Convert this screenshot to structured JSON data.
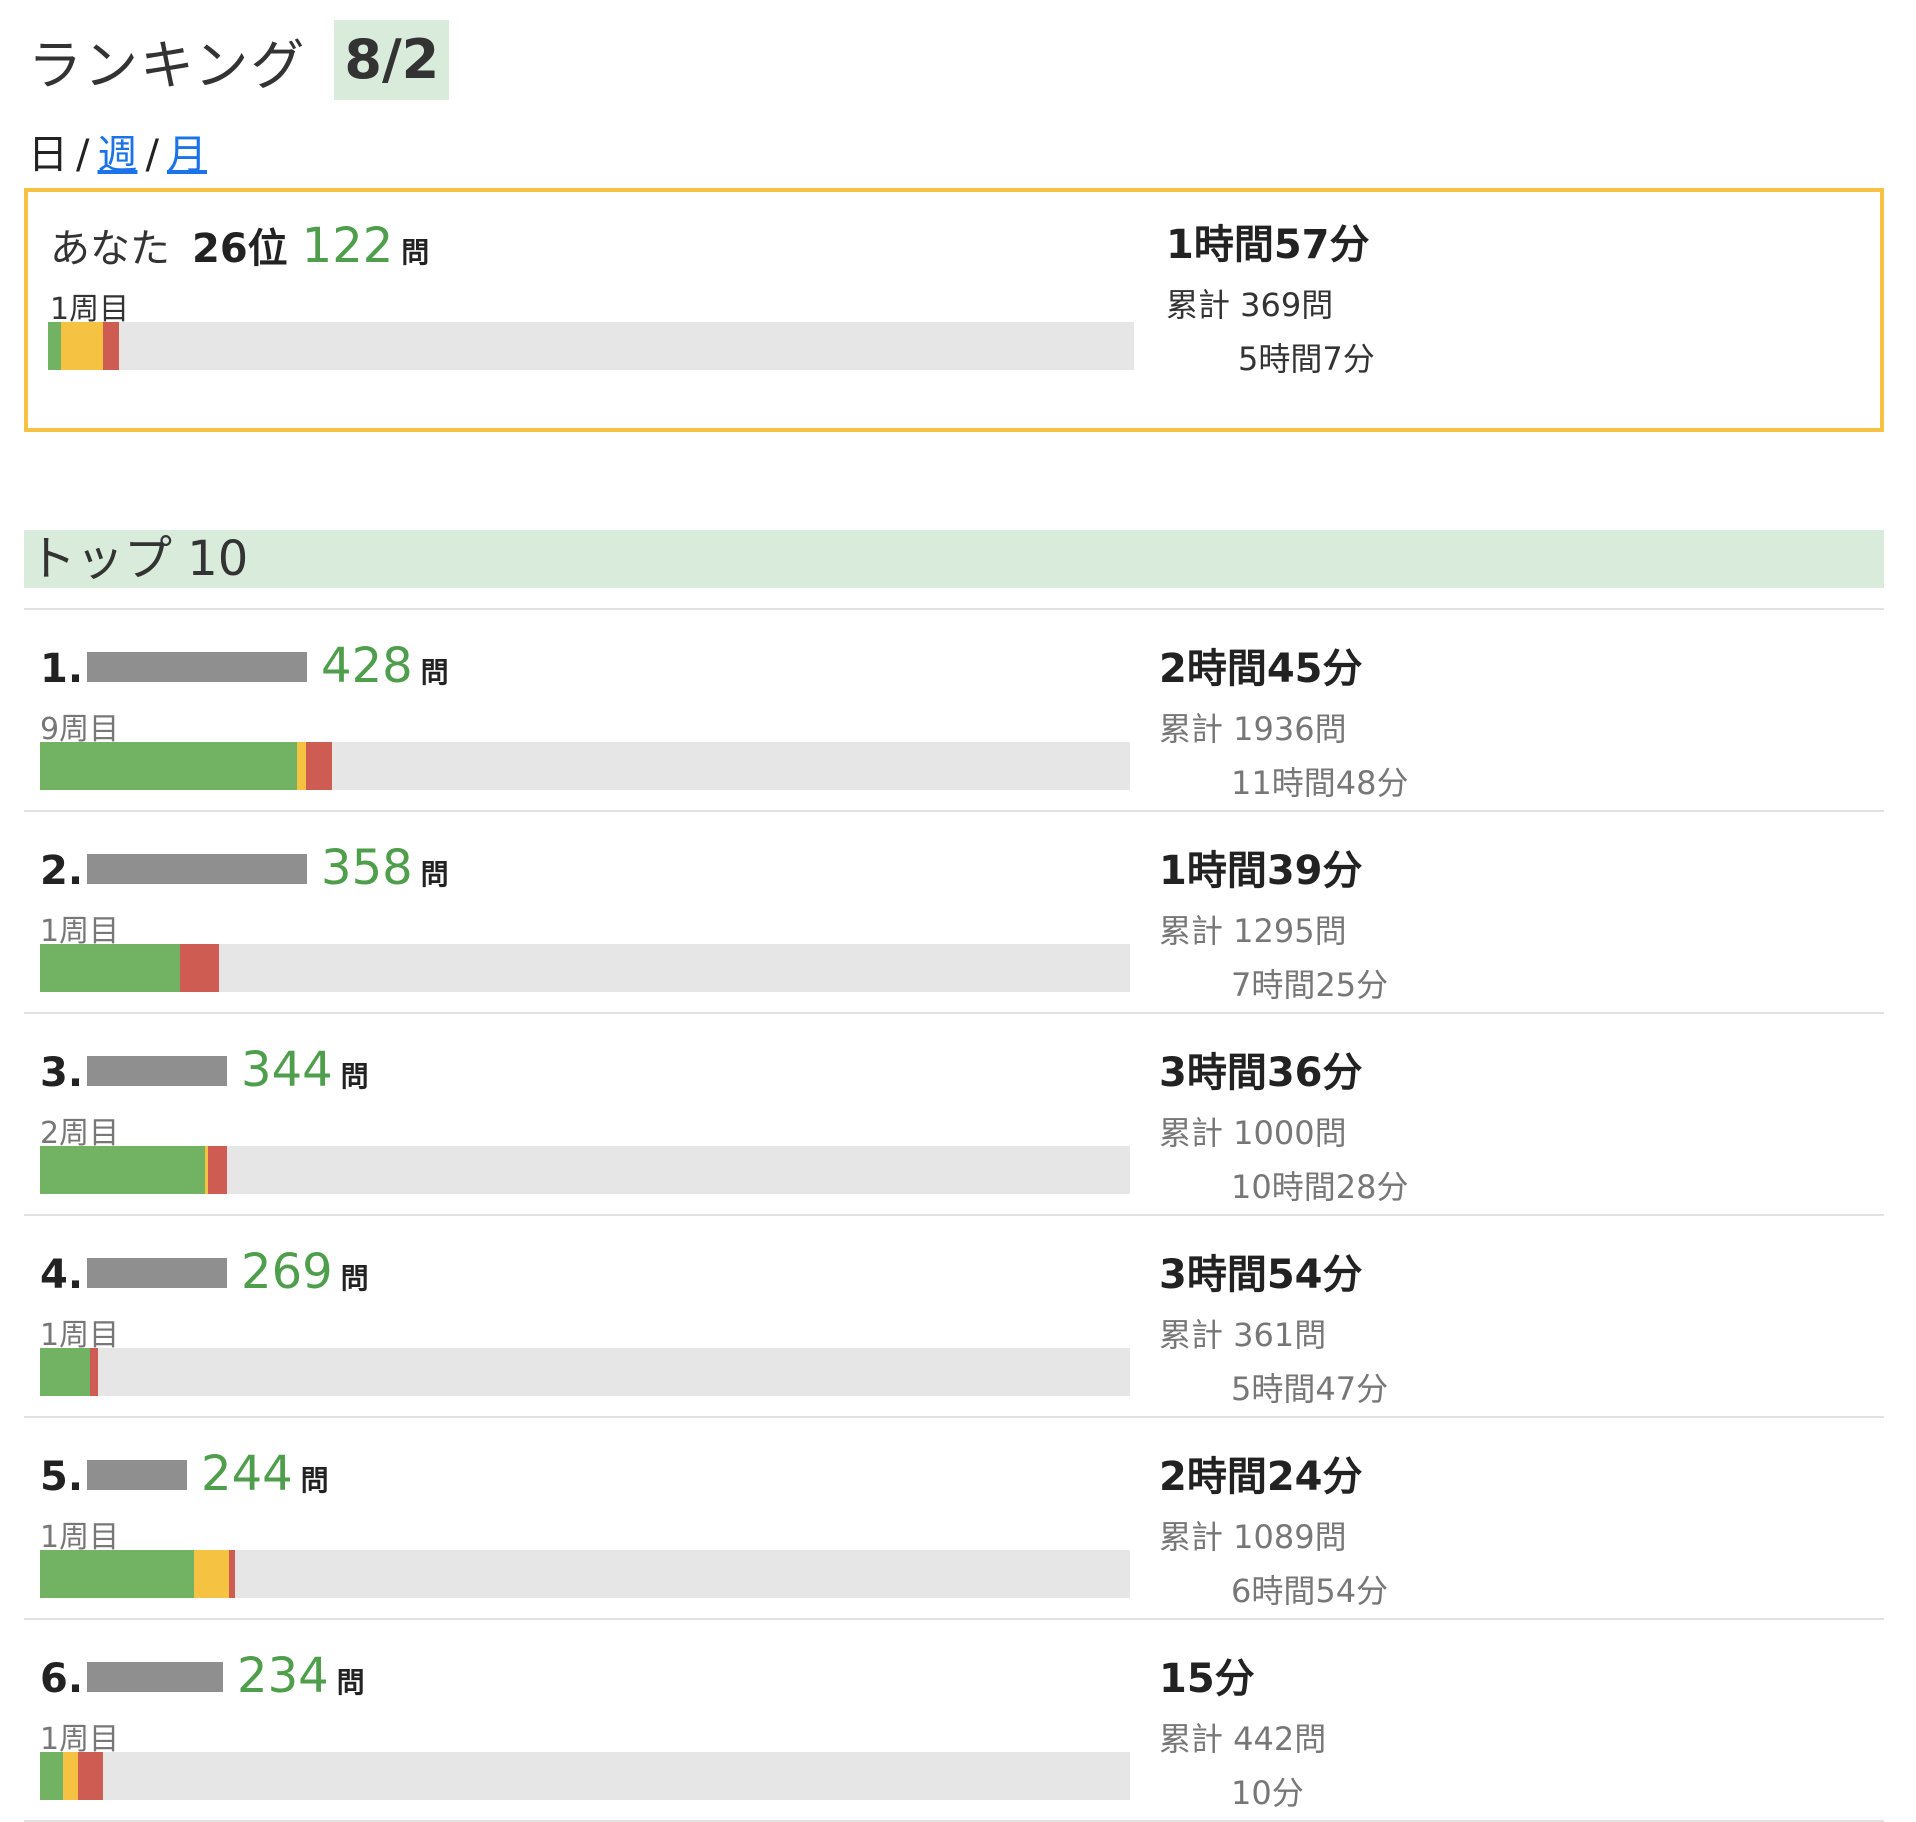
{
  "header": {
    "title": "ランキング",
    "date": "8/2"
  },
  "period_nav": {
    "day": "日",
    "week": "週",
    "month": "月",
    "separator": "/"
  },
  "colors": {
    "correct": "#72b363",
    "partial": "#f5c242",
    "wrong": "#cf5c52",
    "track": "#e6e6e6",
    "highlight_border": "#f7c244",
    "header_bg": "#d9ebdb",
    "link": "#1a73e8"
  },
  "me": {
    "label": "あなた",
    "rank": "26位",
    "count": "122",
    "unit": "問",
    "lap": "1周目",
    "time": "1時間57分",
    "total_label": "累計 369問",
    "total_time": "5時間7分",
    "progress": [
      {
        "type": "g",
        "fraction": 0.012
      },
      {
        "type": "y",
        "fraction": 0.039
      },
      {
        "type": "r",
        "fraction": 0.014
      }
    ]
  },
  "top": {
    "title": "トップ 10",
    "entries": [
      {
        "rank": "1.",
        "count": "428",
        "unit": "問",
        "lap": "9周目",
        "time": "2時間45分",
        "total": "累計 1936問",
        "total_time": "11時間48分",
        "progress": [
          {
            "type": "g",
            "fraction": 0.236
          },
          {
            "type": "y",
            "fraction": 0.008
          },
          {
            "type": "r",
            "fraction": 0.024
          }
        ]
      },
      {
        "rank": "2.",
        "count": "358",
        "unit": "問",
        "lap": "1周目",
        "time": "1時間39分",
        "total": "累計 1295問",
        "total_time": "7時間25分",
        "progress": [
          {
            "type": "g",
            "fraction": 0.128
          },
          {
            "type": "r",
            "fraction": 0.036
          }
        ]
      },
      {
        "rank": "3.",
        "count": "344",
        "unit": "問",
        "lap": "2周目",
        "time": "3時間36分",
        "total": "累計 1000問",
        "total_time": "10時間28分",
        "progress": [
          {
            "type": "g",
            "fraction": 0.151
          },
          {
            "type": "y",
            "fraction": 0.003
          },
          {
            "type": "r",
            "fraction": 0.018
          }
        ]
      },
      {
        "rank": "4.",
        "count": "269",
        "unit": "問",
        "lap": "1周目",
        "time": "3時間54分",
        "total": "累計 361問",
        "total_time": "5時間47分",
        "progress": [
          {
            "type": "g",
            "fraction": 0.046
          },
          {
            "type": "r",
            "fraction": 0.007
          }
        ]
      },
      {
        "rank": "5.",
        "count": "244",
        "unit": "問",
        "lap": "1周目",
        "time": "2時間24分",
        "total": "累計 1089問",
        "total_time": "6時間54分",
        "progress": [
          {
            "type": "g",
            "fraction": 0.141
          },
          {
            "type": "y",
            "fraction": 0.032
          },
          {
            "type": "r",
            "fraction": 0.006
          }
        ]
      },
      {
        "rank": "6.",
        "count": "234",
        "unit": "問",
        "lap": "1周目",
        "time": "15分",
        "total": "累計 442問",
        "total_time": "10分",
        "progress": [
          {
            "type": "g",
            "fraction": 0.021
          },
          {
            "type": "y",
            "fraction": 0.014
          },
          {
            "type": "r",
            "fraction": 0.023
          }
        ]
      }
    ]
  }
}
